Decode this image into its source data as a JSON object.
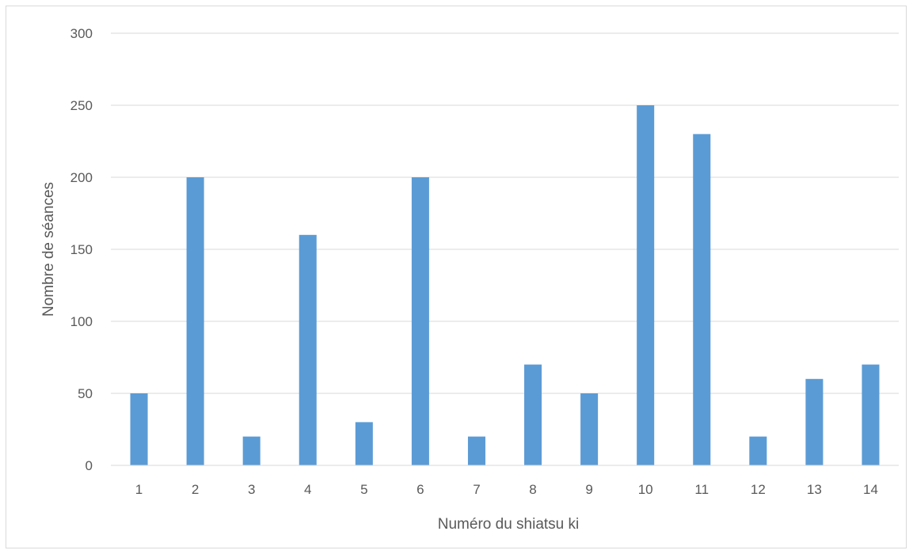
{
  "chart_data": {
    "type": "bar",
    "title": "",
    "xlabel": "Numéro du shiatsu ki",
    "ylabel": "Nombre de séances",
    "categories": [
      "1",
      "2",
      "3",
      "4",
      "5",
      "6",
      "7",
      "8",
      "9",
      "10",
      "11",
      "12",
      "13",
      "14"
    ],
    "values": [
      50,
      200,
      20,
      160,
      30,
      200,
      20,
      70,
      50,
      250,
      230,
      20,
      60,
      70
    ],
    "ylim": [
      0,
      300
    ],
    "yticks": [
      "0",
      "50",
      "100",
      "150",
      "200",
      "250",
      "300"
    ],
    "grid": true,
    "legend": "none",
    "bar_color": "#5b9bd5",
    "grid_color": "#d9d9d9",
    "text_color": "#595959"
  }
}
